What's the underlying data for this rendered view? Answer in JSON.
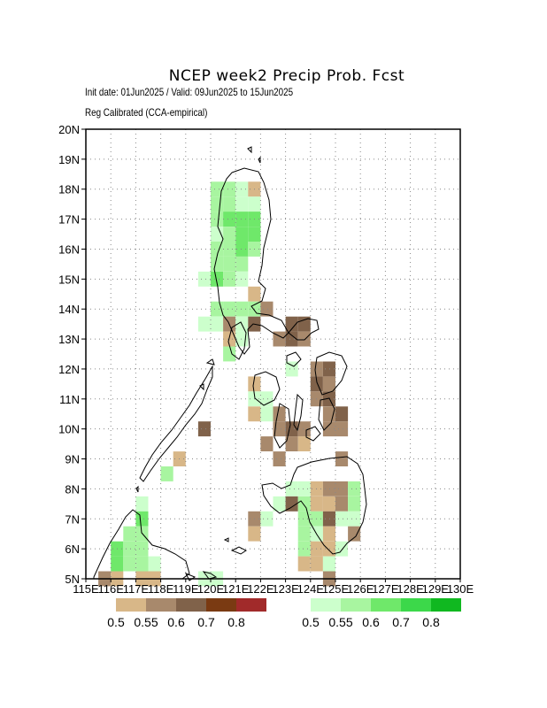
{
  "title": "NCEP week2 Precip Prob. Fcst",
  "subtitle": "Init date: 01Jun2025 / Valid: 09Jun2025 to 15Jun2025",
  "method": "Reg Calibrated (CCA-empirical)",
  "lat_labels": [
    "5N",
    "6N",
    "7N",
    "8N",
    "9N",
    "10N",
    "11N",
    "12N",
    "13N",
    "14N",
    "15N",
    "16N",
    "17N",
    "18N",
    "19N",
    "20N"
  ],
  "lon_labels": [
    "115E",
    "116E",
    "117E",
    "118E",
    "119E",
    "120E",
    "121E",
    "122E",
    "123E",
    "124E",
    "125E",
    "126E",
    "127E",
    "128E",
    "129E",
    "130E"
  ],
  "lon_range": [
    115,
    130
  ],
  "lat_range": [
    5,
    20
  ],
  "colors": {
    "dry": [
      "#d8b788",
      "#a8896c",
      "#80624a",
      "#7a3a12",
      "#a12a2a"
    ],
    "wet": [
      "#ccffcc",
      "#a8f5a0",
      "#6fe86a",
      "#3cd84a",
      "#10b820"
    ]
  },
  "legend": {
    "dry_labels": [
      "0.5",
      "0.55",
      "0.6",
      "0.7",
      "0.8"
    ],
    "wet_labels": [
      "0.5",
      "0.55",
      "0.6",
      "0.7",
      "0.8"
    ]
  },
  "cells": [
    [
      120.25,
      18.0,
      "wet",
      1
    ],
    [
      120.75,
      18.0,
      "wet",
      1
    ],
    [
      121.25,
      18.0,
      "wet",
      0
    ],
    [
      121.75,
      18.0,
      "dry",
      0
    ],
    [
      120.25,
      17.5,
      "wet",
      1
    ],
    [
      120.75,
      17.5,
      "wet",
      1
    ],
    [
      121.25,
      17.5,
      "wet",
      0
    ],
    [
      121.75,
      17.5,
      "wet",
      0
    ],
    [
      120.25,
      17.0,
      "wet",
      1
    ],
    [
      120.75,
      17.0,
      "wet",
      2
    ],
    [
      121.25,
      17.0,
      "wet",
      2
    ],
    [
      121.75,
      17.0,
      "wet",
      2
    ],
    [
      120.25,
      16.5,
      "wet",
      0
    ],
    [
      120.75,
      16.5,
      "wet",
      1
    ],
    [
      121.25,
      16.5,
      "wet",
      2
    ],
    [
      121.75,
      16.5,
      "wet",
      2
    ],
    [
      120.25,
      16.0,
      "wet",
      1
    ],
    [
      120.75,
      16.0,
      "wet",
      1
    ],
    [
      121.25,
      16.0,
      "wet",
      2
    ],
    [
      121.75,
      16.0,
      "wet",
      1
    ],
    [
      120.25,
      15.5,
      "wet",
      1
    ],
    [
      120.75,
      15.5,
      "wet",
      1
    ],
    [
      121.25,
      15.5,
      "wet",
      1
    ],
    [
      119.75,
      15.0,
      "wet",
      0
    ],
    [
      120.25,
      15.0,
      "wet",
      2
    ],
    [
      120.75,
      15.0,
      "wet",
      1
    ],
    [
      121.25,
      15.0,
      "wet",
      0
    ],
    [
      121.75,
      14.5,
      "dry",
      0
    ],
    [
      120.25,
      14.0,
      "wet",
      1
    ],
    [
      120.75,
      14.0,
      "wet",
      1
    ],
    [
      121.25,
      14.0,
      "wet",
      1
    ],
    [
      121.75,
      14.0,
      "wet",
      1
    ],
    [
      122.25,
      14.0,
      "dry",
      1
    ],
    [
      119.75,
      13.5,
      "wet",
      0
    ],
    [
      120.25,
      13.5,
      "wet",
      0
    ],
    [
      120.75,
      13.5,
      "dry",
      1
    ],
    [
      121.25,
      13.5,
      "wet",
      0
    ],
    [
      121.75,
      13.5,
      "dry",
      2
    ],
    [
      123.25,
      13.5,
      "dry",
      2
    ],
    [
      123.75,
      13.5,
      "dry",
      2
    ],
    [
      120.75,
      13.0,
      "dry",
      0
    ],
    [
      121.25,
      13.0,
      "wet",
      0
    ],
    [
      122.75,
      13.0,
      "dry",
      1
    ],
    [
      123.25,
      13.0,
      "dry",
      2
    ],
    [
      123.75,
      13.0,
      "dry",
      1
    ],
    [
      120.75,
      12.5,
      "wet",
      1
    ],
    [
      124.25,
      12.0,
      "dry",
      1
    ],
    [
      124.75,
      12.0,
      "dry",
      2
    ],
    [
      123.25,
      12.0,
      "wet",
      0
    ],
    [
      121.75,
      11.5,
      "dry",
      0
    ],
    [
      124.25,
      11.5,
      "dry",
      2
    ],
    [
      124.75,
      11.5,
      "dry",
      1
    ],
    [
      121.75,
      11.0,
      "wet",
      0
    ],
    [
      122.25,
      11.0,
      "wet",
      0
    ],
    [
      124.25,
      11.0,
      "dry",
      1
    ],
    [
      124.75,
      11.0,
      "dry",
      2
    ],
    [
      121.75,
      10.5,
      "dry",
      0
    ],
    [
      122.25,
      10.5,
      "wet",
      0
    ],
    [
      122.75,
      10.5,
      "dry",
      1
    ],
    [
      124.75,
      10.5,
      "dry",
      1
    ],
    [
      125.25,
      10.5,
      "dry",
      2
    ],
    [
      122.75,
      10.0,
      "dry",
      1
    ],
    [
      123.25,
      10.0,
      "dry",
      2
    ],
    [
      123.75,
      10.0,
      "dry",
      1
    ],
    [
      124.75,
      10.0,
      "dry",
      1
    ],
    [
      125.25,
      10.0,
      "dry",
      1
    ],
    [
      119.75,
      10.0,
      "dry",
      2
    ],
    [
      122.25,
      9.5,
      "dry",
      1
    ],
    [
      123.25,
      9.5,
      "dry",
      1
    ],
    [
      123.75,
      9.5,
      "dry",
      0
    ],
    [
      118.75,
      9.0,
      "dry",
      0
    ],
    [
      122.75,
      9.0,
      "dry",
      1
    ],
    [
      125.25,
      9.0,
      "dry",
      1
    ],
    [
      118.25,
      8.5,
      "wet",
      1
    ],
    [
      123.25,
      8.0,
      "wet",
      0
    ],
    [
      123.75,
      8.0,
      "wet",
      0
    ],
    [
      124.25,
      8.0,
      "dry",
      0
    ],
    [
      124.75,
      8.0,
      "dry",
      1
    ],
    [
      125.25,
      8.0,
      "dry",
      1
    ],
    [
      125.75,
      8.0,
      "wet",
      1
    ],
    [
      122.75,
      7.5,
      "wet",
      0
    ],
    [
      123.25,
      7.5,
      "dry",
      2
    ],
    [
      123.75,
      7.5,
      "wet",
      1
    ],
    [
      124.25,
      7.5,
      "dry",
      0
    ],
    [
      124.75,
      7.5,
      "dry",
      0
    ],
    [
      125.25,
      7.5,
      "dry",
      1
    ],
    [
      125.75,
      7.5,
      "wet",
      1
    ],
    [
      121.75,
      7.0,
      "dry",
      1
    ],
    [
      122.25,
      7.0,
      "wet",
      0
    ],
    [
      123.75,
      7.0,
      "wet",
      1
    ],
    [
      124.25,
      7.0,
      "wet",
      1
    ],
    [
      124.75,
      7.0,
      "dry",
      2
    ],
    [
      125.25,
      7.0,
      "wet",
      0
    ],
    [
      125.75,
      7.0,
      "wet",
      0
    ],
    [
      121.75,
      6.5,
      "dry",
      0
    ],
    [
      123.75,
      6.5,
      "wet",
      1
    ],
    [
      124.25,
      6.5,
      "wet",
      0
    ],
    [
      124.75,
      6.5,
      "dry",
      0
    ],
    [
      125.75,
      6.5,
      "dry",
      1
    ],
    [
      123.75,
      6.0,
      "wet",
      1
    ],
    [
      124.25,
      6.0,
      "dry",
      0
    ],
    [
      124.75,
      6.0,
      "dry",
      0
    ],
    [
      125.25,
      6.0,
      "wet",
      0
    ],
    [
      123.75,
      5.5,
      "dry",
      0
    ],
    [
      124.25,
      5.5,
      "dry",
      0
    ],
    [
      124.75,
      5.5,
      "wet",
      0
    ],
    [
      124.75,
      5.0,
      "dry",
      1
    ],
    [
      117.25,
      7.5,
      "wet",
      0
    ],
    [
      117.25,
      7.0,
      "wet",
      2
    ],
    [
      116.75,
      6.5,
      "wet",
      1
    ],
    [
      117.25,
      6.5,
      "wet",
      1
    ],
    [
      116.25,
      6.0,
      "wet",
      2
    ],
    [
      116.75,
      6.0,
      "wet",
      1
    ],
    [
      117.25,
      6.0,
      "wet",
      1
    ],
    [
      116.25,
      5.5,
      "wet",
      2
    ],
    [
      116.75,
      5.5,
      "wet",
      1
    ],
    [
      117.25,
      5.5,
      "wet",
      1
    ],
    [
      117.75,
      5.5,
      "wet",
      0
    ],
    [
      115.75,
      5.0,
      "dry",
      1
    ],
    [
      116.25,
      5.0,
      "dry",
      0
    ],
    [
      117.25,
      5.0,
      "dry",
      0
    ],
    [
      117.75,
      5.0,
      "dry",
      0
    ],
    [
      119.75,
      5.0,
      "wet",
      0
    ],
    [
      120.25,
      5.0,
      "wet",
      0
    ]
  ]
}
